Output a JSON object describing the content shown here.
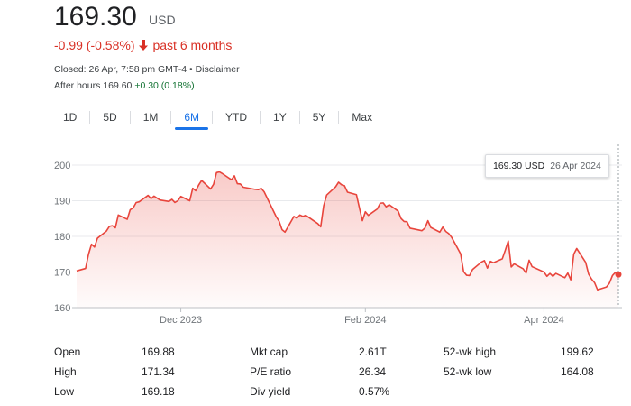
{
  "quote": {
    "price": "169.30",
    "currency": "USD",
    "change": "-0.99 (-0.58%)",
    "period": "past 6 months",
    "closed": "Closed: 26 Apr, 7:58 pm GMT-4 • Disclaimer",
    "after_hours_label": "After hours 169.60",
    "after_hours_change": "+0.30 (0.18%)"
  },
  "tabs": [
    {
      "label": "1D",
      "selected": false
    },
    {
      "label": "5D",
      "selected": false
    },
    {
      "label": "1M",
      "selected": false
    },
    {
      "label": "6M",
      "selected": true
    },
    {
      "label": "YTD",
      "selected": false
    },
    {
      "label": "1Y",
      "selected": false
    },
    {
      "label": "5Y",
      "selected": false
    },
    {
      "label": "Max",
      "selected": false
    }
  ],
  "tooltip": {
    "value": "169.30 USD",
    "date": "26 Apr 2024"
  },
  "colors": {
    "line": "#e8453c",
    "negative": "#d93025",
    "positive": "#137333",
    "accent": "#1a73e8"
  },
  "chart_data": {
    "type": "area",
    "xlabel": "",
    "ylabel": "",
    "ylim": [
      160,
      200
    ],
    "yticks": [
      160,
      170,
      180,
      190,
      200
    ],
    "xticks": [
      "Dec 2023",
      "Feb 2024",
      "Apr 2024"
    ],
    "x": [
      "2023-10-27",
      "2023-10-30",
      "2023-10-31",
      "2023-11-01",
      "2023-11-02",
      "2023-11-03",
      "2023-11-06",
      "2023-11-07",
      "2023-11-08",
      "2023-11-09",
      "2023-11-10",
      "2023-11-13",
      "2023-11-14",
      "2023-11-15",
      "2023-11-16",
      "2023-11-17",
      "2023-11-20",
      "2023-11-21",
      "2023-11-22",
      "2023-11-24",
      "2023-11-27",
      "2023-11-28",
      "2023-11-29",
      "2023-11-30",
      "2023-12-01",
      "2023-12-04",
      "2023-12-05",
      "2023-12-06",
      "2023-12-07",
      "2023-12-08",
      "2023-12-11",
      "2023-12-12",
      "2023-12-13",
      "2023-12-14",
      "2023-12-15",
      "2023-12-18",
      "2023-12-19",
      "2023-12-20",
      "2023-12-21",
      "2023-12-22",
      "2023-12-26",
      "2023-12-27",
      "2023-12-28",
      "2023-12-29",
      "2024-01-02",
      "2024-01-03",
      "2024-01-04",
      "2024-01-05",
      "2024-01-08",
      "2024-01-09",
      "2024-01-10",
      "2024-01-11",
      "2024-01-12",
      "2024-01-16",
      "2024-01-17",
      "2024-01-18",
      "2024-01-19",
      "2024-01-22",
      "2024-01-23",
      "2024-01-24",
      "2024-01-25",
      "2024-01-26",
      "2024-01-29",
      "2024-01-30",
      "2024-01-31",
      "2024-02-01",
      "2024-02-02",
      "2024-02-05",
      "2024-02-06",
      "2024-02-07",
      "2024-02-08",
      "2024-02-09",
      "2024-02-12",
      "2024-02-13",
      "2024-02-14",
      "2024-02-15",
      "2024-02-16",
      "2024-02-20",
      "2024-02-21",
      "2024-02-22",
      "2024-02-23",
      "2024-02-26",
      "2024-02-27",
      "2024-02-28",
      "2024-02-29",
      "2024-03-01",
      "2024-03-04",
      "2024-03-05",
      "2024-03-06",
      "2024-03-07",
      "2024-03-08",
      "2024-03-11",
      "2024-03-12",
      "2024-03-13",
      "2024-03-14",
      "2024-03-15",
      "2024-03-18",
      "2024-03-19",
      "2024-03-20",
      "2024-03-21",
      "2024-03-22",
      "2024-03-25",
      "2024-03-26",
      "2024-03-27",
      "2024-03-28",
      "2024-04-01",
      "2024-04-02",
      "2024-04-03",
      "2024-04-04",
      "2024-04-05",
      "2024-04-08",
      "2024-04-09",
      "2024-04-10",
      "2024-04-11",
      "2024-04-12",
      "2024-04-15",
      "2024-04-16",
      "2024-04-17",
      "2024-04-18",
      "2024-04-19",
      "2024-04-22",
      "2024-04-23",
      "2024-04-24",
      "2024-04-25",
      "2024-04-26"
    ],
    "series": [
      {
        "values": [
          170.3,
          171.0,
          175.0,
          177.8,
          177.0,
          179.5,
          181.5,
          182.8,
          183.0,
          182.4,
          186.0,
          184.8,
          187.5,
          188.0,
          189.5,
          189.7,
          191.5,
          190.6,
          191.3,
          190.2,
          189.8,
          190.4,
          189.5,
          190.0,
          191.2,
          190.0,
          193.5,
          192.8,
          194.4,
          195.7,
          193.3,
          194.6,
          197.9,
          198.1,
          197.6,
          195.9,
          197.0,
          194.8,
          194.7,
          193.8,
          193.2,
          193.1,
          193.5,
          192.5,
          185.6,
          184.3,
          181.9,
          181.2,
          185.6,
          185.1,
          186.0,
          185.6,
          185.9,
          183.6,
          182.7,
          188.6,
          191.6,
          193.9,
          195.2,
          194.5,
          194.2,
          192.4,
          191.7,
          188.0,
          184.4,
          186.9,
          185.9,
          187.7,
          189.3,
          189.4,
          188.3,
          188.9,
          187.1,
          185.0,
          184.2,
          184.1,
          182.3,
          181.6,
          182.3,
          184.4,
          182.5,
          181.2,
          182.6,
          181.4,
          180.8,
          179.7,
          175.1,
          170.1,
          169.1,
          169.0,
          170.7,
          172.8,
          173.2,
          171.1,
          173.0,
          172.6,
          173.7,
          176.1,
          178.7,
          171.4,
          172.3,
          170.9,
          169.7,
          173.3,
          171.5,
          170.0,
          168.8,
          169.6,
          168.8,
          169.6,
          168.4,
          169.7,
          167.8,
          175.0,
          176.6,
          172.7,
          169.4,
          168.0,
          167.0,
          165.0,
          165.8,
          166.9,
          169.0,
          169.9,
          169.3
        ]
      }
    ]
  },
  "stats": [
    {
      "label": "Open",
      "value": "169.88"
    },
    {
      "label": "High",
      "value": "171.34"
    },
    {
      "label": "Low",
      "value": "169.18"
    },
    {
      "label": "Mkt cap",
      "value": "2.61T"
    },
    {
      "label": "P/E ratio",
      "value": "26.34"
    },
    {
      "label": "Div yield",
      "value": "0.57%"
    },
    {
      "label": "52-wk high",
      "value": "199.62"
    },
    {
      "label": "52-wk low",
      "value": "164.08"
    }
  ]
}
